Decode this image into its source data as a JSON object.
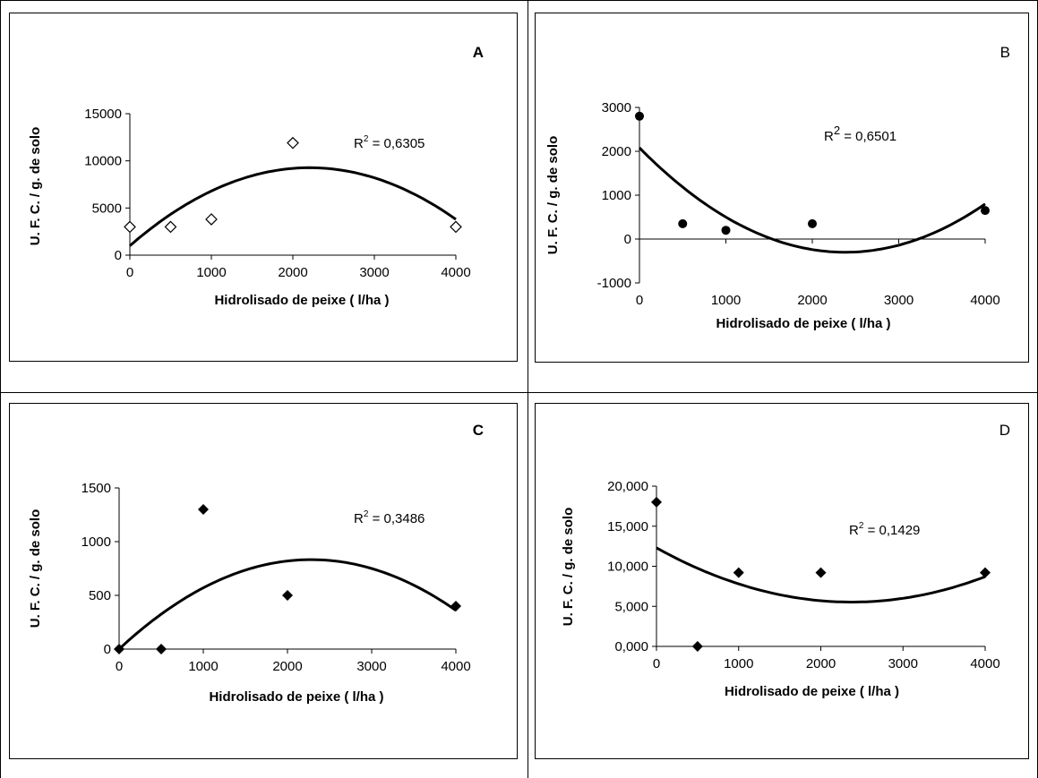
{
  "chart_data": [
    {
      "panel": "A",
      "panel_bold": true,
      "type": "scatter",
      "marker": "open-diamond",
      "x": [
        0,
        500,
        1000,
        2000,
        4000
      ],
      "y": [
        3000,
        3000,
        3800,
        11900,
        3000
      ],
      "trendline": {
        "type": "polynomial",
        "degree": 2,
        "coefficients": [
          1000,
          7.5,
          -0.0017
        ]
      },
      "r2_label": "R² = 0,6305",
      "r2_prefix": "R",
      "r2_sup": "2",
      "r2_value": " = 0,6305",
      "xlabel": "Hidrolisado de peixe ( l/ha )",
      "ylabel": "U. F. C. / g. de solo",
      "xticks": [
        "0",
        "1000",
        "2000",
        "3000",
        "4000"
      ],
      "yticks": [
        "0",
        "5000",
        "10000",
        "15000"
      ],
      "xlim": [
        0,
        4000
      ],
      "ylim": [
        0,
        15000
      ]
    },
    {
      "panel": "B",
      "panel_bold": false,
      "type": "scatter",
      "marker": "filled-circle",
      "x": [
        0,
        500,
        1000,
        2000,
        4000
      ],
      "y": [
        2800,
        350,
        200,
        350,
        650
      ],
      "trendline": {
        "type": "polynomial",
        "degree": 2,
        "coefficients": [
          2080,
          -2.0,
          0.00042
        ]
      },
      "r2_prefix": "R",
      "r2_sup": "2",
      "r2_value": " = 0,6501",
      "xlabel": "Hidrolisado de peixe ( l/ha )",
      "ylabel": "U. F. C. / g. de solo",
      "xticks": [
        "0",
        "1000",
        "2000",
        "3000",
        "4000"
      ],
      "yticks": [
        "-1000",
        "0",
        "1000",
        "2000",
        "3000"
      ],
      "xlim": [
        0,
        4000
      ],
      "ylim": [
        -1000,
        3000
      ]
    },
    {
      "panel": "C",
      "panel_bold": true,
      "type": "scatter",
      "marker": "filled-diamond",
      "x": [
        0,
        500,
        1000,
        2000,
        4000
      ],
      "y": [
        0,
        0,
        1300,
        500,
        400
      ],
      "trendline": {
        "type": "polynomial",
        "degree": 2,
        "coefficients": [
          0,
          0.73,
          -0.00016
        ]
      },
      "r2_prefix": "R",
      "r2_sup": "2",
      "r2_value": " = 0,3486",
      "xlabel": "Hidrolisado de peixe ( l/ha )",
      "ylabel": "U. F. C. / g. de solo",
      "xticks": [
        "0",
        "1000",
        "2000",
        "3000",
        "4000"
      ],
      "yticks": [
        "0",
        "500",
        "1000",
        "1500"
      ],
      "xlim": [
        0,
        4000
      ],
      "ylim": [
        0,
        1500
      ]
    },
    {
      "panel": "D",
      "panel_bold": false,
      "type": "scatter",
      "marker": "filled-diamond",
      "x": [
        0,
        500,
        1000,
        2000,
        4000
      ],
      "y": [
        18.0,
        0.0,
        9.2,
        9.2,
        9.2
      ],
      "trendline": {
        "type": "polynomial",
        "degree": 2,
        "coefficients": [
          12.3,
          -0.0057,
          1.2e-06
        ]
      },
      "r2_prefix": "R",
      "r2_sup": "2",
      "r2_value": " = 0,1429",
      "xlabel": "Hidrolisado de peixe ( l/ha )",
      "ylabel": "U. F. C. / g. de solo",
      "xticks": [
        "0",
        "1000",
        "2000",
        "3000",
        "4000"
      ],
      "yticks": [
        "0,000",
        "5,000",
        "10,000",
        "15,000",
        "20,000"
      ],
      "xlim": [
        0,
        4000
      ],
      "ylim": [
        0,
        20
      ]
    }
  ]
}
